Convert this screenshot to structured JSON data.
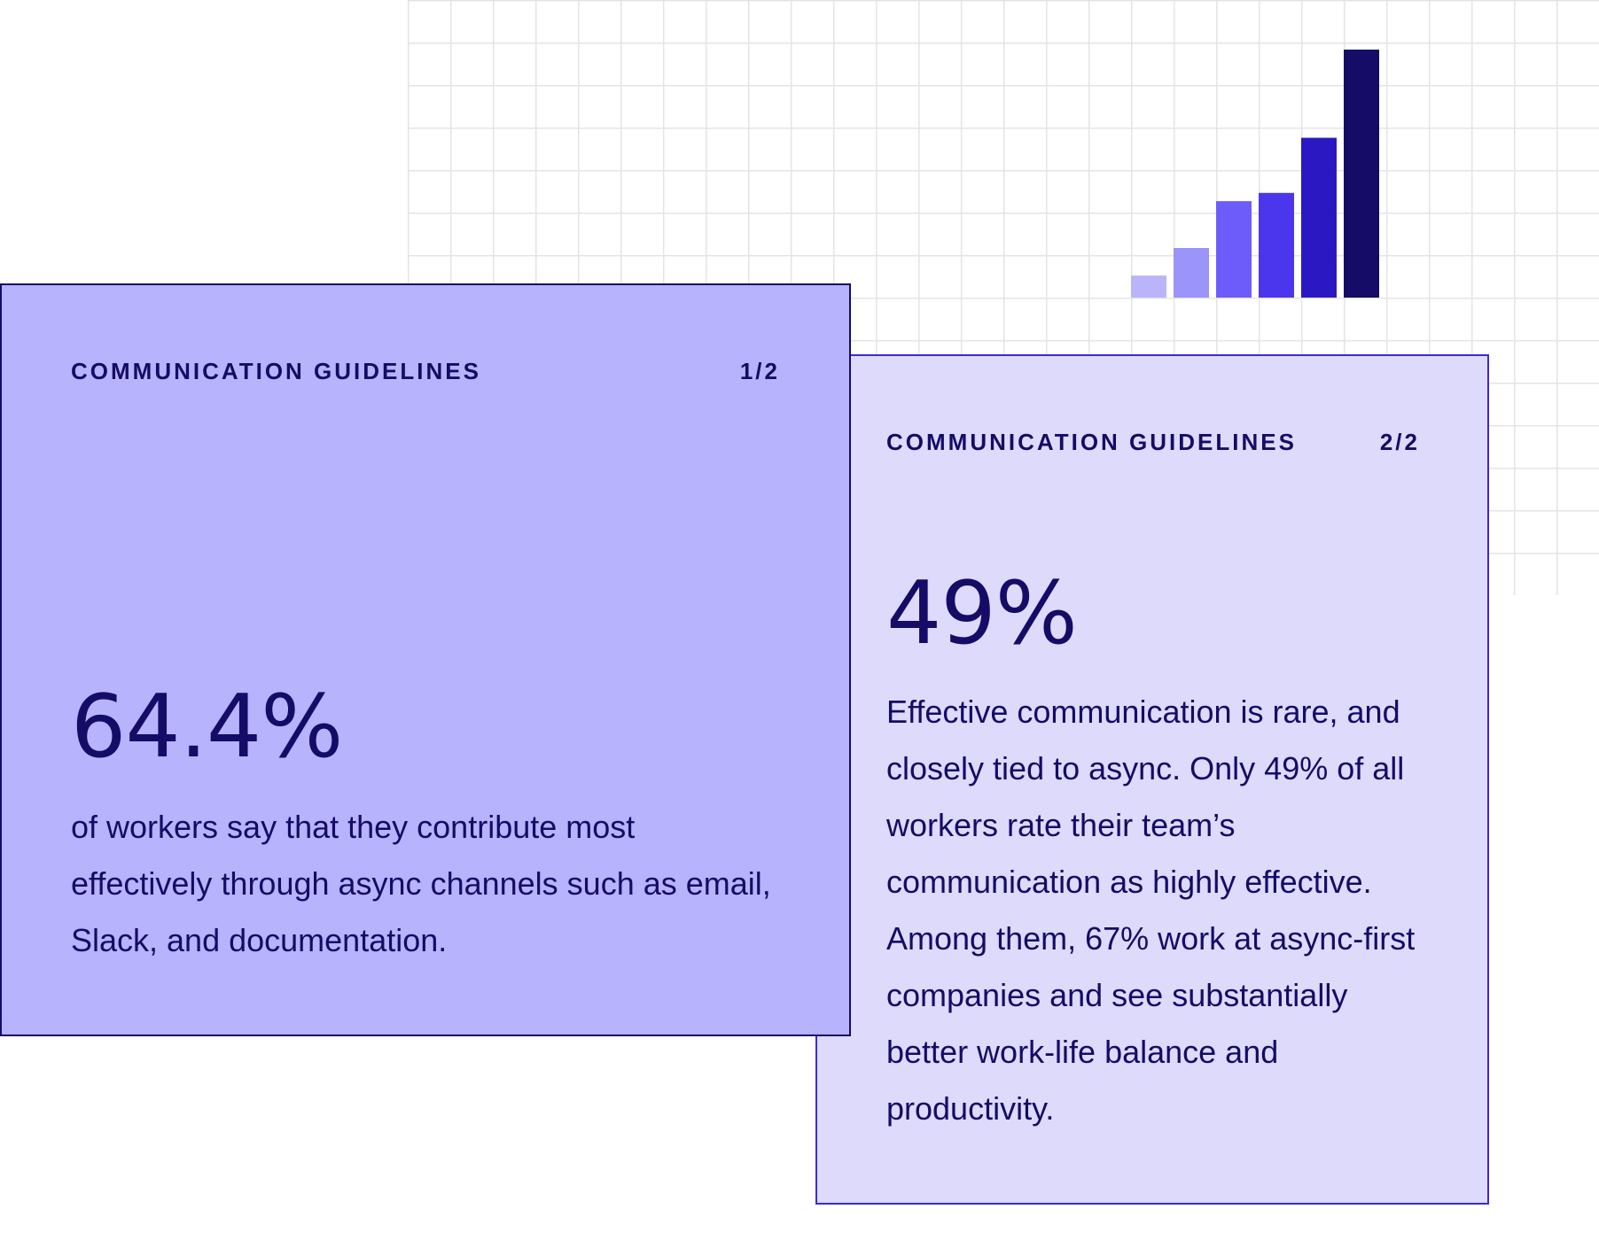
{
  "colors": {
    "grid_line": "#e4e4e8",
    "card_front_bg": "#b8b3fd",
    "card_front_border": "#140c66",
    "card_back_bg": "#dddafc",
    "card_back_border": "#3b2bd0",
    "text": "#140c66"
  },
  "decor_chart": {
    "bars": [
      {
        "value": 8,
        "color": "#bab5fb"
      },
      {
        "value": 18,
        "color": "#9b94f9"
      },
      {
        "value": 35,
        "color": "#6d5cf9"
      },
      {
        "value": 38,
        "color": "#4b36ee"
      },
      {
        "value": 58,
        "color": "#2c18c2"
      },
      {
        "value": 90,
        "color": "#140c66"
      }
    ],
    "max": 90
  },
  "card_front": {
    "title": "COMMUNICATION GUIDELINES",
    "page": "1/2",
    "stat": "64.4%",
    "description": "of workers say that they contribute most effectively through async channels such as email, Slack, and documentation."
  },
  "card_back": {
    "title": "COMMUNICATION GUIDELINES",
    "page": "2/2",
    "stat": "49%",
    "description": "Effective communication is rare, and closely tied to async. Only 49% of all workers rate their team’s communication as highly effective. Among them, 67% work at async-first companies and see substantially better work-life balance and productivity."
  }
}
